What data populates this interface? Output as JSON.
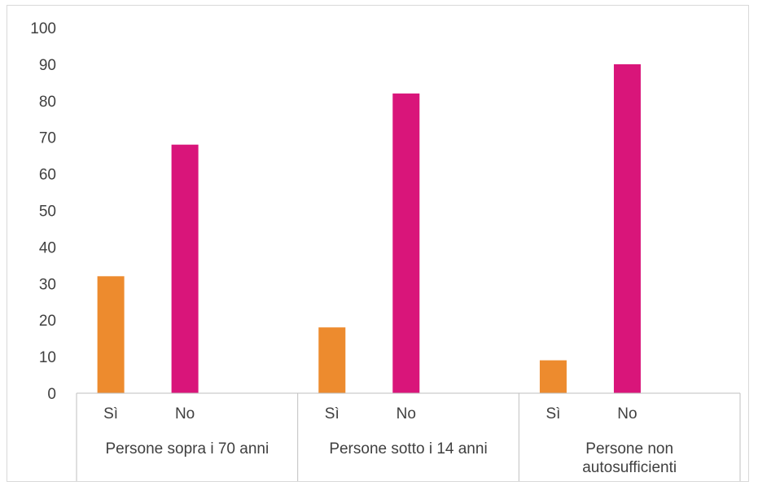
{
  "chart_data": {
    "type": "bar",
    "title": "",
    "xlabel": "",
    "ylabel": "",
    "ylim": [
      0,
      100
    ],
    "yticks": [
      0,
      10,
      20,
      30,
      40,
      50,
      60,
      70,
      80,
      90,
      100
    ],
    "grid": false,
    "legend": "none",
    "groups": [
      {
        "label_lines": [
          "Persone sopra i 70 anni"
        ],
        "bars": [
          {
            "category": "Sì",
            "value": 32
          },
          {
            "category": "No",
            "value": 68
          }
        ]
      },
      {
        "label_lines": [
          "Persone sotto i 14 anni"
        ],
        "bars": [
          {
            "category": "Sì",
            "value": 18
          },
          {
            "category": "No",
            "value": 82
          }
        ]
      },
      {
        "label_lines": [
          "Persone non",
          "autosufficienti"
        ],
        "bars": [
          {
            "category": "Sì",
            "value": 9
          },
          {
            "category": "No",
            "value": 90
          }
        ]
      }
    ],
    "colors": {
      "Sì": "#ed8b2e",
      "No": "#d9157a",
      "axis": "#bfbfbf",
      "text": "#404040"
    }
  }
}
